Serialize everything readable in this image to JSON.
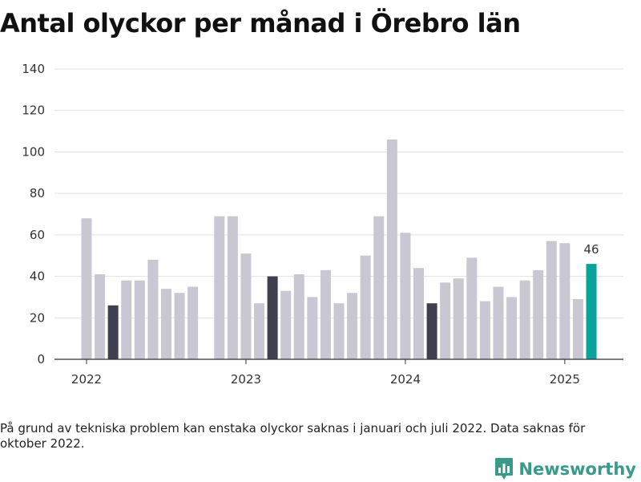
{
  "title": "Antal olyckor per månad i Örebro län",
  "footnote": "På grund av tekniska problem kan enstaka olyckor saknas i januari och juli 2022. Data saknas för oktober 2022.",
  "brand": {
    "name": "Newsworthy",
    "icon": "newsworthy-logo-icon"
  },
  "colors": {
    "default": "#c8c7d2",
    "highlight": "#3f3f4d",
    "latest": "#0aa39a",
    "grid": "#e1e1e1",
    "axis": "#333333"
  },
  "chart_data": {
    "type": "bar",
    "title": "Antal olyckor per månad i Örebro län",
    "xlabel": "",
    "ylabel": "",
    "ylim": [
      0,
      140
    ],
    "yticks": [
      0,
      20,
      40,
      60,
      80,
      100,
      120,
      140
    ],
    "xtick_labels": [
      {
        "label": "2022",
        "category": "2022-01"
      },
      {
        "label": "2023",
        "category": "2023-01"
      },
      {
        "label": "2024",
        "category": "2024-01"
      },
      {
        "label": "2025",
        "category": "2025-01"
      }
    ],
    "grid": true,
    "annotations": [
      {
        "category": "2025-03",
        "text": "46"
      }
    ],
    "categories": [
      "2022-01",
      "2022-02",
      "2022-03",
      "2022-04",
      "2022-05",
      "2022-06",
      "2022-07",
      "2022-08",
      "2022-09",
      "2022-10",
      "2022-11",
      "2022-12",
      "2023-01",
      "2023-02",
      "2023-03",
      "2023-04",
      "2023-05",
      "2023-06",
      "2023-07",
      "2023-08",
      "2023-09",
      "2023-10",
      "2023-11",
      "2023-12",
      "2024-01",
      "2024-02",
      "2024-03",
      "2024-04",
      "2024-05",
      "2024-06",
      "2024-07",
      "2024-08",
      "2024-09",
      "2024-10",
      "2024-11",
      "2024-12",
      "2025-01",
      "2025-02",
      "2025-03"
    ],
    "values": [
      68,
      41,
      26,
      38,
      38,
      48,
      34,
      32,
      35,
      null,
      69,
      69,
      51,
      27,
      40,
      33,
      41,
      30,
      43,
      27,
      32,
      50,
      69,
      106,
      61,
      44,
      27,
      37,
      39,
      49,
      28,
      35,
      30,
      38,
      43,
      57,
      56,
      29,
      46
    ],
    "highlight_categories": [
      "2022-03",
      "2023-03",
      "2024-03"
    ],
    "latest_category": "2025-03"
  }
}
